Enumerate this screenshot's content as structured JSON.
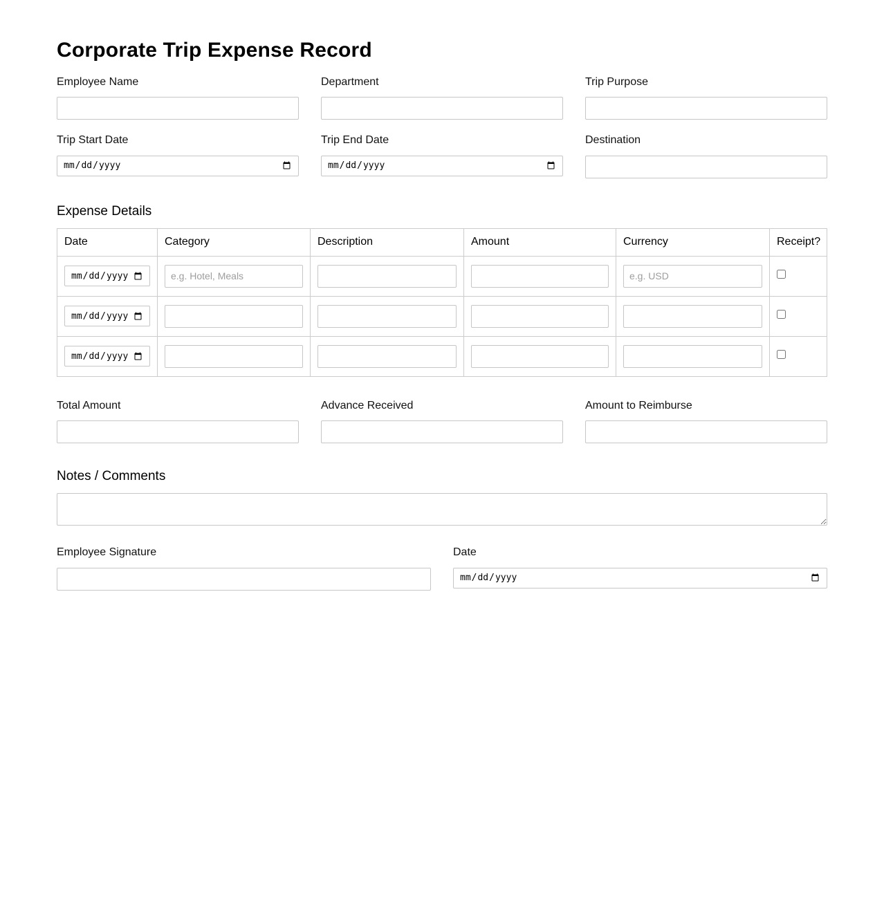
{
  "form": {
    "title": "Corporate Trip Expense Record",
    "date_format_hint": "mm/dd/yyyy",
    "fields": {
      "employee_name": {
        "label": "Employee Name",
        "value": ""
      },
      "department": {
        "label": "Department",
        "value": ""
      },
      "trip_purpose": {
        "label": "Trip Purpose",
        "value": ""
      },
      "trip_start_date": {
        "label": "Trip Start Date",
        "value": ""
      },
      "trip_end_date": {
        "label": "Trip End Date",
        "value": ""
      },
      "destination": {
        "label": "Destination",
        "value": ""
      },
      "total_amount": {
        "label": "Total Amount",
        "value": ""
      },
      "advance_received": {
        "label": "Advance Received",
        "value": ""
      },
      "amount_to_reimburse": {
        "label": "Amount to Reimburse",
        "value": ""
      },
      "notes": {
        "label": "Notes / Comments",
        "value": ""
      },
      "employee_signature": {
        "label": "Employee Signature",
        "value": ""
      },
      "signature_date": {
        "label": "Date",
        "value": ""
      }
    },
    "expense_details": {
      "heading": "Expense Details",
      "columns": [
        "Date",
        "Category",
        "Description",
        "Amount",
        "Currency",
        "Receipt?"
      ],
      "rows": [
        {
          "date": "",
          "category": "",
          "category_placeholder": "e.g. Hotel, Meals",
          "description": "",
          "amount": "",
          "currency": "",
          "currency_placeholder": "e.g. USD",
          "receipt_checked": false
        },
        {
          "date": "",
          "category": "",
          "description": "",
          "amount": "",
          "currency": "",
          "receipt_checked": false
        },
        {
          "date": "",
          "category": "",
          "description": "",
          "amount": "",
          "currency": "",
          "receipt_checked": false
        }
      ]
    }
  }
}
